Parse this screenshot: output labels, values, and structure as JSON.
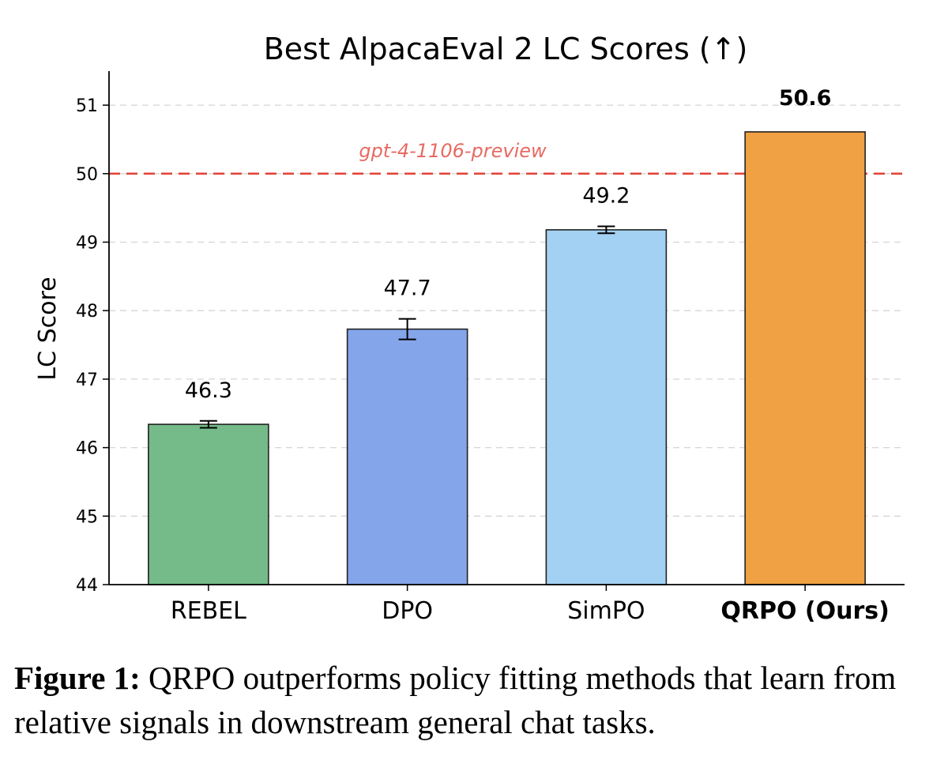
{
  "chart_data": {
    "type": "bar",
    "title": "Best AlpacaEval 2 LC Scores (↑)",
    "xlabel": "",
    "ylabel": "LC Score",
    "ylim": [
      44,
      51.5
    ],
    "yticks": [
      44,
      45,
      46,
      47,
      48,
      49,
      50,
      51
    ],
    "grid": "horizontal-dashed",
    "categories": [
      "REBEL",
      "DPO",
      "SimPO",
      "QRPO (Ours)"
    ],
    "values": [
      46.34,
      47.73,
      49.18,
      50.61
    ],
    "errors": [
      0.05,
      0.15,
      0.05,
      0
    ],
    "data_labels": [
      "46.3",
      "47.7",
      "49.2",
      "50.6"
    ],
    "highlight_index": 3,
    "colors": [
      "#75bb89",
      "#84a5ea",
      "#a3d1f3",
      "#f0a143"
    ],
    "edge_color": "#222222",
    "reference_line": {
      "value": 50,
      "label": "gpt-4-1106-preview",
      "color": "#e2453c"
    }
  },
  "caption": {
    "label": "Figure 1:",
    "text": "QRPO outperforms policy fitting methods that learn from relative signals in downstream general chat tasks."
  }
}
